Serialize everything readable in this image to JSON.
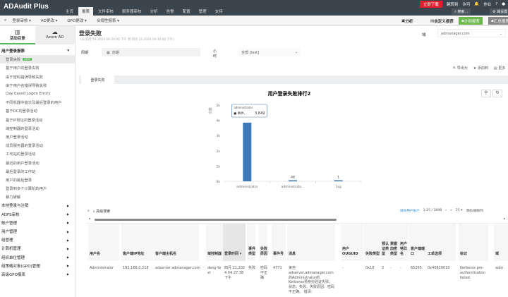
{
  "app": {
    "title": "ADAudit Plus"
  },
  "topnav": [
    "主页",
    "报表",
    "文件审核",
    "服务器审核",
    "分析",
    "告警",
    "配置",
    "管理",
    "支持"
  ],
  "topnav_active": 1,
  "topright": {
    "download": "立即下载",
    "demo": "跳转到",
    "license": "许可",
    "notif_count": "1",
    "jobs": "作业",
    "help": "?",
    "search": "搜索...",
    "extra": "域设置"
  },
  "submenu": [
    "登录审核 ▾",
    "AD更改 ▾",
    "GPO更改 ▾",
    "合规性报表 ▾"
  ],
  "toolbar": {
    "analysis": "分析",
    "custom": "自定义报表",
    "schedule": "计划报表",
    "summary": "汇总报表"
  },
  "sidebar": {
    "tabs": [
      "活动目录",
      "Azure AD"
    ],
    "group_open": "用户登录报表",
    "items": [
      "登录失败",
      "基于用户的登录失败",
      "由于密码错误导致失败",
      "由于用户名错误导致失败",
      "Day based Logon Errors",
      "不同机器中首次及最后登录的用户",
      "基于DC的登录活动",
      "基于IP地址的登录活动",
      "域控制器的登录活动",
      "用户登录活动",
      "成员服务器的登录活动",
      "工作站的登录活动",
      "最近的用户登录活动",
      "最后登录的工作站",
      "用户的最后登录",
      "登录到多个计算机的用户",
      "暴力破解"
    ],
    "new_badge": "NEW",
    "groups": [
      "本地登录与注销",
      "ADFS审核",
      "账户管理",
      "用户管理",
      "组管理",
      "计算机管理",
      "组织单位管理",
      "组策略对象(GPO)管理",
      "高级GPO报表"
    ]
  },
  "page": {
    "title": "登录失败",
    "subtitle": "(从 四月 14,2024 04:30:00 下午 到 四月 21,2024 04:30:00 下午)",
    "domain_label": "域",
    "domain_value": "admanager.com",
    "period_label": "周期",
    "period_value": "前期",
    "hour_label": "小时",
    "hour_value": "全部 [test]",
    "export": "导出为",
    "add_to": "添加到",
    "more": "更多",
    "tab": "登录失败"
  },
  "chart_data": {
    "type": "bar",
    "title": "用户登录失败排行2",
    "ylabel": "次数",
    "categories": [
      "administrator",
      "administrato...",
      "1sg"
    ],
    "values": [
      3849,
      48,
      1
    ],
    "data_labels": [
      "",
      "48",
      "1"
    ],
    "yticks": [
      "0k",
      "1k",
      "2k",
      "3k",
      "4k",
      "5k"
    ],
    "ylim": [
      0,
      5000
    ],
    "color": "#3d7ab8",
    "tooltip": {
      "title": "administrator",
      "series": "事件、",
      "value": "3,849"
    }
  },
  "grid": {
    "adv_search": "高级搜索",
    "exclude": "排除用户账户",
    "range": "1-25 / 3898",
    "page_size": "25 ▾",
    "add_col": "添加/删除列",
    "headers": [
      "用户名",
      "客户端IP地址",
      "客户端主机名",
      "域控制器",
      "登录时间 ▾",
      "事件类型",
      "失败原因",
      "事件号",
      "消息",
      "用户OUGUID",
      "失败类型",
      "预认证类型",
      "票据加密类型",
      "用户特异名",
      "客户端端口",
      "工单选项",
      "标记",
      "域"
    ],
    "row": [
      "Administrator",
      "192.168.0.218",
      "adserver.admanager.com",
      "deng-test",
      "四月 21,2024 04:27:38 下午",
      "失败",
      "密码不正确",
      "4771",
      "来自adserver.admanager.com的Administrator的Kerberos预身份验证失败。状态：失败。失败原因：密码不正确。 错误：",
      "-",
      "0x18",
      "2",
      "-",
      "-",
      "65265",
      "0x40810010",
      "Kerberos pre-authentication failed.",
      "adm"
    ]
  }
}
